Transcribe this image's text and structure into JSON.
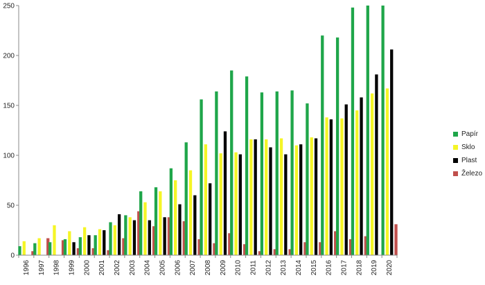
{
  "chart_data": {
    "type": "bar",
    "title": "",
    "xlabel": "",
    "ylabel": "",
    "ylim": [
      0,
      250
    ],
    "yticks": [
      0,
      50,
      100,
      150,
      200,
      250
    ],
    "grid": false,
    "legend_position": "right",
    "categories": [
      "1996",
      "1997",
      "1998",
      "1999",
      "2000",
      "2001",
      "2002",
      "2003",
      "2004",
      "2005",
      "2006",
      "2007",
      "2008",
      "2009",
      "2010",
      "2011",
      "2012",
      "2013",
      "2014",
      "2015",
      "2016",
      "2017",
      "2018",
      "2019",
      "2020"
    ],
    "series": [
      {
        "name": "Papír",
        "color": "#1fa64a",
        "values": [
          9,
          12,
          13,
          16,
          18,
          20,
          33,
          40,
          64,
          68,
          87,
          113,
          156,
          164,
          185,
          179,
          163,
          164,
          165,
          152,
          220,
          218,
          248,
          250,
          250
        ]
      },
      {
        "name": "Sklo",
        "color": "#f5f526",
        "values": [
          14,
          17,
          30,
          24,
          28,
          26,
          30,
          38,
          53,
          64,
          75,
          85,
          111,
          102,
          103,
          116,
          116,
          117,
          110,
          118,
          138,
          137,
          145,
          162,
          167
        ]
      },
      {
        "name": "Plast",
        "color": "#000000",
        "values": [
          0,
          0,
          0,
          13,
          20,
          25,
          41,
          35,
          35,
          38,
          51,
          60,
          72,
          124,
          101,
          116,
          108,
          101,
          111,
          117,
          136,
          151,
          158,
          181,
          206
        ]
      },
      {
        "name": "Železo",
        "color": "#c0504d",
        "values": [
          4,
          17,
          15,
          7,
          7,
          5,
          17,
          44,
          29,
          38,
          34,
          16,
          12,
          22,
          11,
          4,
          6,
          6,
          13,
          13,
          24,
          16,
          19,
          0,
          31
        ]
      }
    ]
  }
}
